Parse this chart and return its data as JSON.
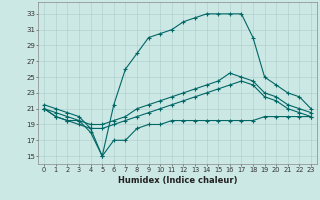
{
  "xlabel": "Humidex (Indice chaleur)",
  "bg_color": "#cce8e4",
  "grid_color": "#aacccc",
  "line_color": "#006666",
  "x_ticks": [
    0,
    1,
    2,
    3,
    4,
    5,
    6,
    7,
    8,
    9,
    10,
    11,
    12,
    13,
    14,
    15,
    16,
    17,
    18,
    19,
    20,
    21,
    22,
    23
  ],
  "y_ticks": [
    15,
    17,
    19,
    21,
    23,
    25,
    27,
    29,
    31,
    33
  ],
  "xlim": [
    -0.5,
    23.5
  ],
  "ylim": [
    14.0,
    34.5
  ],
  "series": {
    "max": {
      "x": [
        0,
        1,
        2,
        3,
        4,
        5,
        6,
        7,
        8,
        9,
        10,
        11,
        12,
        13,
        14,
        15,
        16,
        17,
        18,
        19,
        20,
        21,
        22,
        23
      ],
      "y": [
        21.5,
        21.0,
        20.5,
        20.0,
        18.5,
        15.0,
        21.5,
        26.0,
        28.0,
        30.0,
        30.5,
        31.0,
        32.0,
        32.5,
        33.0,
        33.0,
        33.0,
        33.0,
        30.0,
        25.0,
        24.0,
        23.0,
        22.5,
        21.0
      ]
    },
    "min": {
      "x": [
        0,
        1,
        2,
        3,
        4,
        5,
        6,
        7,
        8,
        9,
        10,
        11,
        12,
        13,
        14,
        15,
        16,
        17,
        18,
        19,
        20,
        21,
        22,
        23
      ],
      "y": [
        21.0,
        20.0,
        19.5,
        19.5,
        18.0,
        15.0,
        17.0,
        17.0,
        18.5,
        19.0,
        19.0,
        19.5,
        19.5,
        19.5,
        19.5,
        19.5,
        19.5,
        19.5,
        19.5,
        20.0,
        20.0,
        20.0,
        20.0,
        20.0
      ]
    },
    "avg1": {
      "x": [
        0,
        1,
        2,
        3,
        4,
        5,
        6,
        7,
        8,
        9,
        10,
        11,
        12,
        13,
        14,
        15,
        16,
        17,
        18,
        19,
        20,
        21,
        22,
        23
      ],
      "y": [
        21.0,
        20.5,
        20.0,
        19.5,
        19.0,
        19.0,
        19.5,
        20.0,
        21.0,
        21.5,
        22.0,
        22.5,
        23.0,
        23.5,
        24.0,
        24.5,
        25.5,
        25.0,
        24.5,
        23.0,
        22.5,
        21.5,
        21.0,
        20.5
      ]
    },
    "avg2": {
      "x": [
        0,
        1,
        2,
        3,
        4,
        5,
        6,
        7,
        8,
        9,
        10,
        11,
        12,
        13,
        14,
        15,
        16,
        17,
        18,
        19,
        20,
        21,
        22,
        23
      ],
      "y": [
        21.0,
        20.0,
        19.5,
        19.0,
        18.5,
        18.5,
        19.0,
        19.5,
        20.0,
        20.5,
        21.0,
        21.5,
        22.0,
        22.5,
        23.0,
        23.5,
        24.0,
        24.5,
        24.0,
        22.5,
        22.0,
        21.0,
        20.5,
        20.0
      ]
    }
  }
}
